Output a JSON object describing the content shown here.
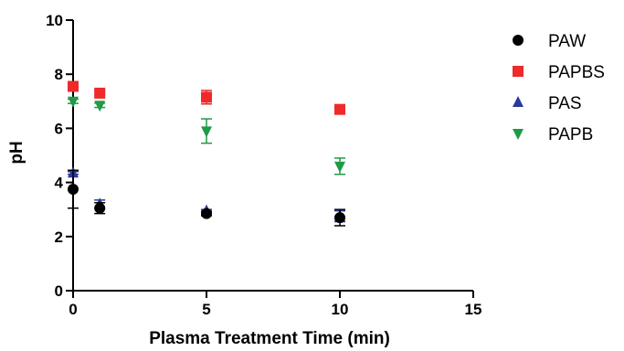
{
  "chart_data": {
    "type": "scatter",
    "xlabel": "Plasma Treatment Time (min)",
    "ylabel": "pH",
    "xlim": [
      0,
      15
    ],
    "ylim": [
      0,
      10
    ],
    "xticks": [
      0,
      5,
      10,
      15
    ],
    "yticks": [
      0,
      2,
      4,
      6,
      8,
      10
    ],
    "grid": false,
    "legend_position": "top-right",
    "series": [
      {
        "name": "PAPBS",
        "marker": "square",
        "color": "#ee2a2a",
        "x": [
          0,
          1,
          5,
          10
        ],
        "y": [
          7.55,
          7.3,
          7.15,
          6.7
        ],
        "err": [
          0.05,
          0.08,
          0.25,
          0.08
        ]
      },
      {
        "name": "PAPB",
        "marker": "triangle-down",
        "color": "#1f9a47",
        "x": [
          0,
          1,
          5,
          10
        ],
        "y": [
          7.0,
          6.85,
          5.9,
          4.6
        ],
        "err": [
          0.08,
          0.08,
          0.45,
          0.3
        ]
      },
      {
        "name": "PAS",
        "marker": "triangle-up",
        "color": "#2b3a9a",
        "x": [
          0,
          1,
          5,
          10
        ],
        "y": [
          4.35,
          3.2,
          2.95,
          2.75
        ],
        "err": [
          0.05,
          0.15,
          0.05,
          0.2
        ]
      },
      {
        "name": "PAW",
        "marker": "circle",
        "color": "#000000",
        "x": [
          0,
          1,
          5,
          10
        ],
        "y": [
          3.75,
          3.05,
          2.85,
          2.7
        ],
        "err": [
          0.7,
          0.2,
          0.08,
          0.3
        ]
      }
    ],
    "legend_order": [
      "PAW",
      "PAPBS",
      "PAS",
      "PAPB"
    ]
  }
}
